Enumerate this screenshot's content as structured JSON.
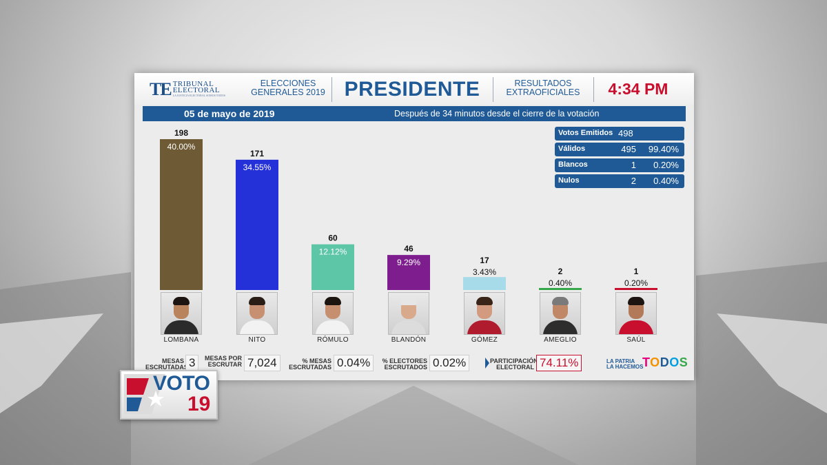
{
  "header": {
    "logo_mark": "TE",
    "logo_line1": "TRIBUNAL",
    "logo_line2": "ELECTORAL",
    "logo_sub": "LA JUSTICIA ELECTORAL SOMOS TODOS",
    "elecciones_line1": "ELECCIONES",
    "elecciones_line2": "GENERALES 2019",
    "title": "PRESIDENTE",
    "resultados_line1": "RESULTADOS",
    "resultados_line2": "EXTRAOFICIALES",
    "time": "4:34 PM"
  },
  "datebar": {
    "date": "05 de mayo de 2019",
    "message": "Después de 34 minutos desde el cierre de la votación"
  },
  "stats": [
    {
      "label": "Votos Emitidos",
      "count": "498",
      "pct": ""
    },
    {
      "label": "Válidos",
      "count": "495",
      "pct": "99.40%"
    },
    {
      "label": "Blancos",
      "count": "1",
      "pct": "0.20%"
    },
    {
      "label": "Nulos",
      "count": "2",
      "pct": "0.40%"
    }
  ],
  "chart_data": {
    "type": "bar",
    "title": "PRESIDENTE",
    "categories": [
      "LOMBANA",
      "NITO",
      "RÓMULO",
      "BLANDÓN",
      "GÓMEZ",
      "AMEGLIO",
      "SAÚL"
    ],
    "values": [
      198,
      171,
      60,
      46,
      17,
      2,
      1
    ],
    "value_labels": [
      "198",
      "171",
      "60",
      "46",
      "17",
      "2",
      "1"
    ],
    "pct_labels": [
      "40.00%",
      "34.55%",
      "12.12%",
      "9.29%",
      "3.43%",
      "0.40%",
      "0.20%"
    ],
    "colors": [
      "#6e5a35",
      "#2430d8",
      "#5cc6a7",
      "#7e1e8e",
      "#a7dbea",
      "#36a84a",
      "#c8102e"
    ],
    "ylim": [
      0,
      198
    ],
    "grid": false,
    "legend": "none"
  },
  "bottom": {
    "mesas_escrutadas_line1": "MESAS",
    "mesas_escrutadas_line2": "ESCRUTADAS",
    "mesas_escrutadas_value": "3",
    "mesas_por_line1": "MESAS POR",
    "mesas_por_line2": "ESCRUTAR",
    "mesas_por_value": "7,024",
    "pct_mesas_line1": "% MESAS",
    "pct_mesas_line2": "ESCRUTADAS",
    "pct_mesas_value": "0.04%",
    "pct_electores_line1": "% ELECTORES",
    "pct_electores_line2": "ESCRUTADOS",
    "pct_electores_value": "0.02%",
    "participacion_line1": "PARTICIPACIÓN",
    "participacion_line2": "ELECTORAL",
    "participacion_value": "74.11%",
    "patria_line1": "LA PATRIA",
    "patria_line2": "LA HACEMOS",
    "todos": "TODOS"
  },
  "badge": {
    "word": "VOTO",
    "number": "19"
  },
  "colors": {
    "brand_blue": "#1f5a96",
    "accent_red": "#c8102e"
  }
}
